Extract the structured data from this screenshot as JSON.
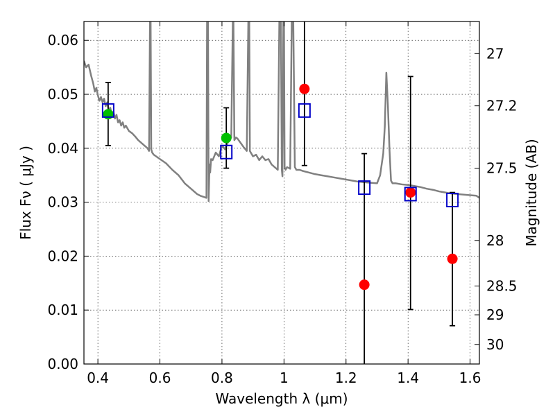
{
  "chart_data": {
    "type": "scatter",
    "xlabel": "Wavelength  λ (μm)",
    "ylabel_left": "Flux  Fν ( μJy )",
    "ylabel_right": "Magnitude (AB)",
    "xlim": [
      0.355,
      1.63
    ],
    "ylim": [
      0.0,
      0.0635
    ],
    "grid": true,
    "x_ticks": [
      "0.4",
      "0.6",
      "0.8",
      "1",
      "1.2",
      "1.4",
      "1.6"
    ],
    "y_ticks": [
      "0.00",
      "0.01",
      "0.02",
      "0.03",
      "0.04",
      "0.05",
      "0.06"
    ],
    "right_ticks": [
      "27",
      "27.2",
      "27.5",
      "28",
      "28.5",
      "29",
      "30"
    ],
    "colors": {
      "model": "#808080",
      "green": "#00c000",
      "red": "#ff0000",
      "box": "#0000c8",
      "errorbar": "#000000"
    },
    "model_spectrum": {
      "x": [
        0.355,
        0.362,
        0.37,
        0.378,
        0.385,
        0.39,
        0.395,
        0.4,
        0.405,
        0.41,
        0.415,
        0.42,
        0.425,
        0.43,
        0.435,
        0.44,
        0.445,
        0.45,
        0.455,
        0.46,
        0.465,
        0.47,
        0.475,
        0.48,
        0.485,
        0.49,
        0.5,
        0.51,
        0.52,
        0.53,
        0.54,
        0.55,
        0.56,
        0.565,
        0.568,
        0.57,
        0.572,
        0.575,
        0.58,
        0.6,
        0.62,
        0.64,
        0.66,
        0.68,
        0.7,
        0.72,
        0.73,
        0.74,
        0.75,
        0.752,
        0.755,
        0.757,
        0.76,
        0.762,
        0.765,
        0.77,
        0.78,
        0.79,
        0.8,
        0.81,
        0.82,
        0.83,
        0.835,
        0.837,
        0.84,
        0.845,
        0.85,
        0.86,
        0.87,
        0.88,
        0.885,
        0.888,
        0.89,
        0.9,
        0.91,
        0.92,
        0.93,
        0.94,
        0.95,
        0.96,
        0.97,
        0.98,
        0.985,
        0.99,
        0.993,
        0.995,
        0.998,
        1.0,
        1.002,
        1.005,
        1.01,
        1.02,
        1.025,
        1.03,
        1.035,
        1.04,
        1.05,
        1.06,
        1.08,
        1.1,
        1.12,
        1.14,
        1.16,
        1.18,
        1.2,
        1.22,
        1.24,
        1.26,
        1.28,
        1.3,
        1.31,
        1.32,
        1.325,
        1.33,
        1.335,
        1.34,
        1.345,
        1.35,
        1.36,
        1.38,
        1.4,
        1.42,
        1.44,
        1.46,
        1.48,
        1.5,
        1.52,
        1.54,
        1.56,
        1.58,
        1.6,
        1.62,
        1.63
      ],
      "y": [
        0.0562,
        0.055,
        0.0555,
        0.0535,
        0.052,
        0.0505,
        0.0512,
        0.0498,
        0.0488,
        0.0495,
        0.0485,
        0.0492,
        0.0478,
        0.0485,
        0.047,
        0.0475,
        0.0462,
        0.0468,
        0.0455,
        0.0462,
        0.0448,
        0.0452,
        0.0442,
        0.0448,
        0.0438,
        0.0442,
        0.0432,
        0.0428,
        0.0422,
        0.0415,
        0.041,
        0.0405,
        0.04,
        0.0395,
        0.0635,
        0.0635,
        0.0398,
        0.0392,
        0.0388,
        0.038,
        0.0372,
        0.036,
        0.035,
        0.0335,
        0.0325,
        0.0315,
        0.0312,
        0.031,
        0.0308,
        0.0635,
        0.0635,
        0.0302,
        0.037,
        0.0355,
        0.038,
        0.0378,
        0.0392,
        0.0385,
        0.0405,
        0.0398,
        0.0412,
        0.042,
        0.0635,
        0.0635,
        0.0415,
        0.042,
        0.0418,
        0.041,
        0.0402,
        0.0395,
        0.0635,
        0.0635,
        0.0395,
        0.0385,
        0.0388,
        0.0378,
        0.0385,
        0.0378,
        0.038,
        0.037,
        0.0365,
        0.036,
        0.0635,
        0.0635,
        0.036,
        0.0348,
        0.0635,
        0.0635,
        0.0365,
        0.036,
        0.0365,
        0.0362,
        0.0635,
        0.0635,
        0.0365,
        0.036,
        0.036,
        0.0358,
        0.0355,
        0.0352,
        0.035,
        0.0348,
        0.0346,
        0.0344,
        0.0342,
        0.034,
        0.0338,
        0.0337,
        0.0336,
        0.0335,
        0.035,
        0.039,
        0.044,
        0.054,
        0.048,
        0.04,
        0.034,
        0.0335,
        0.0335,
        0.0333,
        0.0332,
        0.033,
        0.0328,
        0.0325,
        0.0323,
        0.032,
        0.0318,
        0.0316,
        0.0315,
        0.0314,
        0.0313,
        0.0312,
        0.0308
      ]
    },
    "green_points": {
      "x": [
        0.433,
        0.814
      ],
      "y": [
        0.0463,
        0.0419
      ]
    },
    "red_points": {
      "x": [
        1.066,
        1.259,
        1.408,
        1.543
      ],
      "y": [
        0.051,
        0.0147,
        0.0318,
        0.0195
      ]
    },
    "box_points": {
      "x": [
        0.433,
        0.814,
        1.066,
        1.259,
        1.408,
        1.543
      ],
      "y": [
        0.047,
        0.0393,
        0.047,
        0.0327,
        0.0315,
        0.0304
      ]
    },
    "errorbars": [
      {
        "x": 0.433,
        "low": 0.0405,
        "high": 0.0522
      },
      {
        "x": 0.814,
        "low": 0.0363,
        "high": 0.0475
      },
      {
        "x": 1.066,
        "low": 0.0368,
        "high": 0.0635
      },
      {
        "x": 1.259,
        "low": 0.0,
        "high": 0.039
      },
      {
        "x": 1.408,
        "low": 0.0101,
        "high": 0.0533
      },
      {
        "x": 1.543,
        "low": 0.0071,
        "high": 0.0318
      }
    ]
  }
}
